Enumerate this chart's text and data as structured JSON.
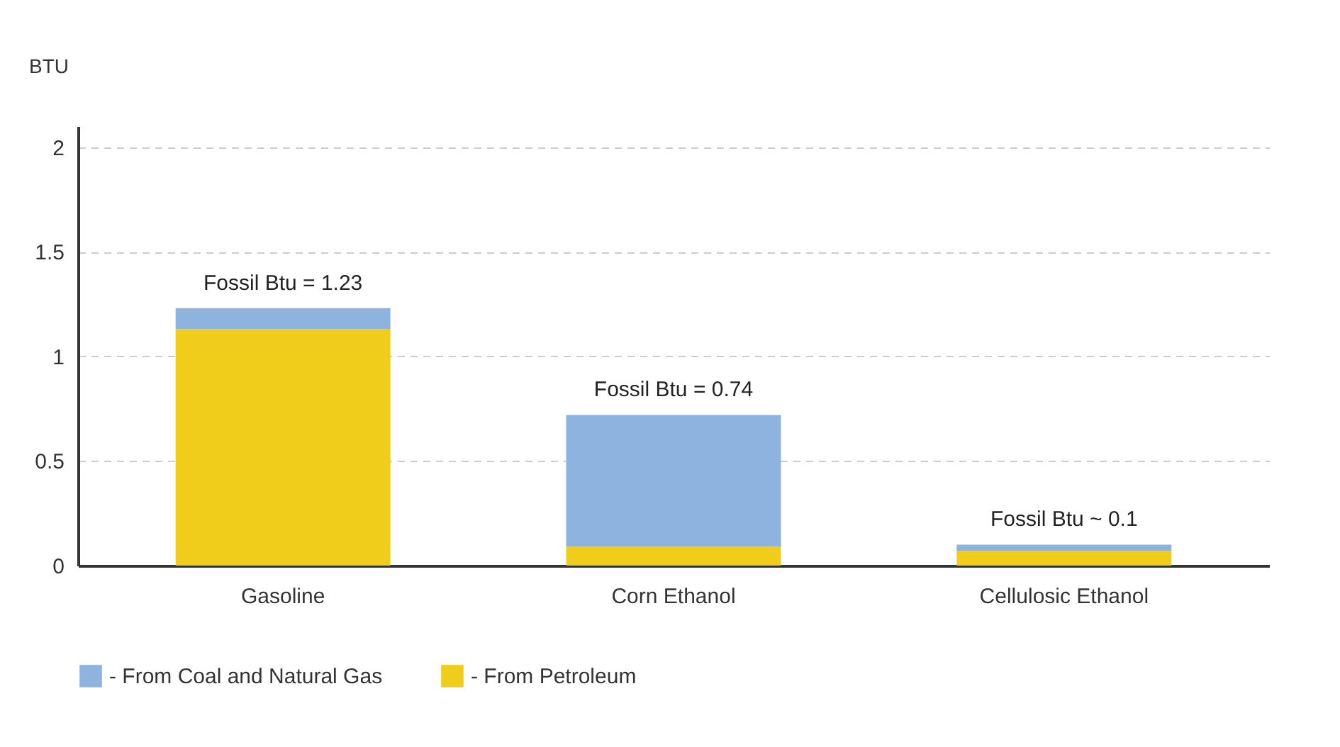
{
  "chart_data": {
    "type": "bar",
    "stacked": true,
    "ylabel": "BTU",
    "categories": [
      "Gasoline",
      "Corn Ethanol",
      "Cellulosic Ethanol"
    ],
    "series": [
      {
        "name": "- From Petroleum",
        "color": "#f0cd1a",
        "values": [
          1.13,
          0.09,
          0.07
        ]
      },
      {
        "name": "- From Coal and Natural Gas",
        "color": "#8fb3df",
        "values": [
          0.1,
          0.63,
          0.03
        ]
      }
    ],
    "ylim": [
      0,
      2.1
    ],
    "yticks": [
      0,
      0.5,
      1,
      1.5,
      2
    ],
    "grid": "y",
    "legend": "bottom",
    "annotations": [
      {
        "text": "Fossil Btu = 1.23",
        "x": "Gasoline",
        "y": 1.23
      },
      {
        "text": "Fossil Btu = 0.74",
        "x": "Corn Ethanol",
        "y": 0.72
      },
      {
        "text": "Fossil Btu ~ 0.1",
        "x": "Cellulosic Ethanol",
        "y": 0.1
      }
    ]
  }
}
